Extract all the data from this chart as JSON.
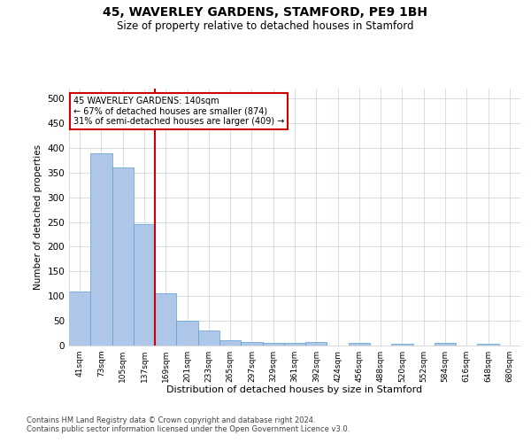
{
  "title": "45, WAVERLEY GARDENS, STAMFORD, PE9 1BH",
  "subtitle": "Size of property relative to detached houses in Stamford",
  "xlabel": "Distribution of detached houses by size in Stamford",
  "ylabel": "Number of detached properties",
  "bar_labels": [
    "41sqm",
    "73sqm",
    "105sqm",
    "137sqm",
    "169sqm",
    "201sqm",
    "233sqm",
    "265sqm",
    "297sqm",
    "329sqm",
    "361sqm",
    "392sqm",
    "424sqm",
    "456sqm",
    "488sqm",
    "520sqm",
    "552sqm",
    "584sqm",
    "616sqm",
    "648sqm",
    "680sqm"
  ],
  "bar_values": [
    110,
    390,
    360,
    245,
    105,
    50,
    30,
    10,
    8,
    5,
    5,
    8,
    0,
    5,
    0,
    3,
    0,
    5,
    0,
    3,
    0
  ],
  "bar_color": "#aec6e8",
  "bar_edge_color": "#5a9fd4",
  "property_label": "45 WAVERLEY GARDENS: 140sqm",
  "annotation_line1": "← 67% of detached houses are smaller (874)",
  "annotation_line2": "31% of semi-detached houses are larger (409) →",
  "vline_color": "#cc0000",
  "vline_x_index": 3,
  "annotation_box_color": "#ffffff",
  "annotation_box_edge": "#cc0000",
  "grid_color": "#c8d0dc",
  "background_color": "#ffffff",
  "ylim": [
    0,
    520
  ],
  "yticks": [
    0,
    50,
    100,
    150,
    200,
    250,
    300,
    350,
    400,
    450,
    500
  ],
  "footer_line1": "Contains HM Land Registry data © Crown copyright and database right 2024.",
  "footer_line2": "Contains public sector information licensed under the Open Government Licence v3.0."
}
